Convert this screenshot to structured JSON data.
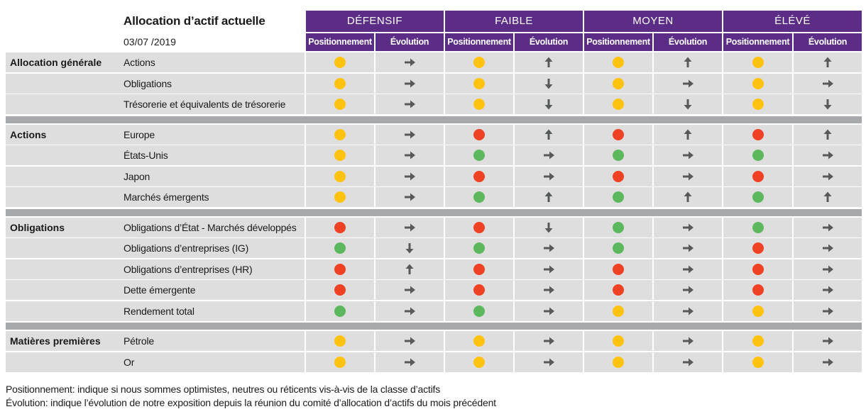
{
  "title": "Allocation d’actif actuelle",
  "date": "03/07 /2019",
  "colors": {
    "header": "#5b2d86",
    "cell": "#dedede",
    "separator": "#a7a9ac",
    "yellow": "#ffc20e",
    "red": "#ef4123",
    "green": "#5cb85c",
    "arrow": "#58595b"
  },
  "risk_levels": [
    "DÉFENSIF",
    "FAIBLE",
    "MOYEN",
    "ÉLÉVÉ"
  ],
  "sub_headers": {
    "positionnement": "Positionnement",
    "evolution": "Évolution"
  },
  "groups": [
    {
      "name": "Allocation générale",
      "rows": [
        {
          "label": "Actions",
          "values": [
            [
              "yellow",
              "right"
            ],
            [
              "yellow",
              "up"
            ],
            [
              "yellow",
              "up"
            ],
            [
              "yellow",
              "up"
            ]
          ]
        },
        {
          "label": "Obligations",
          "values": [
            [
              "yellow",
              "right"
            ],
            [
              "yellow",
              "down"
            ],
            [
              "yellow",
              "right"
            ],
            [
              "yellow",
              "right"
            ]
          ]
        },
        {
          "label": "Trésorerie et équivalents de trésorerie",
          "values": [
            [
              "yellow",
              "right"
            ],
            [
              "yellow",
              "down"
            ],
            [
              "yellow",
              "down"
            ],
            [
              "yellow",
              "down"
            ]
          ]
        }
      ]
    },
    {
      "name": "Actions",
      "rows": [
        {
          "label": "Europe",
          "values": [
            [
              "yellow",
              "right"
            ],
            [
              "red",
              "up"
            ],
            [
              "red",
              "up"
            ],
            [
              "red",
              "up"
            ]
          ]
        },
        {
          "label": "États-Unis",
          "values": [
            [
              "yellow",
              "right"
            ],
            [
              "green",
              "right"
            ],
            [
              "green",
              "right"
            ],
            [
              "green",
              "right"
            ]
          ]
        },
        {
          "label": "Japon",
          "values": [
            [
              "yellow",
              "right"
            ],
            [
              "red",
              "right"
            ],
            [
              "red",
              "right"
            ],
            [
              "red",
              "right"
            ]
          ]
        },
        {
          "label": "Marchés émergents",
          "values": [
            [
              "yellow",
              "right"
            ],
            [
              "green",
              "up"
            ],
            [
              "green",
              "up"
            ],
            [
              "green",
              "up"
            ]
          ]
        }
      ]
    },
    {
      "name": "Obligations",
      "rows": [
        {
          "label": "Obligations d’État - Marchés développés",
          "values": [
            [
              "red",
              "right"
            ],
            [
              "red",
              "down"
            ],
            [
              "green",
              "right"
            ],
            [
              "green",
              "right"
            ]
          ]
        },
        {
          "label": "Obligations d’entreprises (IG)",
          "values": [
            [
              "green",
              "down"
            ],
            [
              "green",
              "right"
            ],
            [
              "green",
              "right"
            ],
            [
              "red",
              "right"
            ]
          ]
        },
        {
          "label": "Obligations d’entreprises (HR)",
          "values": [
            [
              "red",
              "up"
            ],
            [
              "red",
              "right"
            ],
            [
              "red",
              "right"
            ],
            [
              "red",
              "right"
            ]
          ]
        },
        {
          "label": "Dette émergente",
          "values": [
            [
              "red",
              "right"
            ],
            [
              "red",
              "right"
            ],
            [
              "red",
              "right"
            ],
            [
              "red",
              "right"
            ]
          ]
        },
        {
          "label": "Rendement total",
          "values": [
            [
              "green",
              "right"
            ],
            [
              "green",
              "right"
            ],
            [
              "yellow",
              "right"
            ],
            [
              "yellow",
              "right"
            ]
          ]
        }
      ]
    },
    {
      "name": "Matières premières",
      "rows": [
        {
          "label": "Pétrole",
          "values": [
            [
              "yellow",
              "right"
            ],
            [
              "yellow",
              "right"
            ],
            [
              "yellow",
              "right"
            ],
            [
              "yellow",
              "right"
            ]
          ]
        },
        {
          "label": "Or",
          "values": [
            [
              "yellow",
              "right"
            ],
            [
              "yellow",
              "right"
            ],
            [
              "yellow",
              "right"
            ],
            [
              "yellow",
              "right"
            ]
          ]
        }
      ]
    }
  ],
  "footnotes": [
    "Positionnement: indique si nous sommes optimistes, neutres ou réticents vis-à-vis de la classe d’actifs",
    "Évolution: indique l’évolution de notre exposition depuis la réunion du comité d’allocation d’actifs du mois précédent"
  ]
}
